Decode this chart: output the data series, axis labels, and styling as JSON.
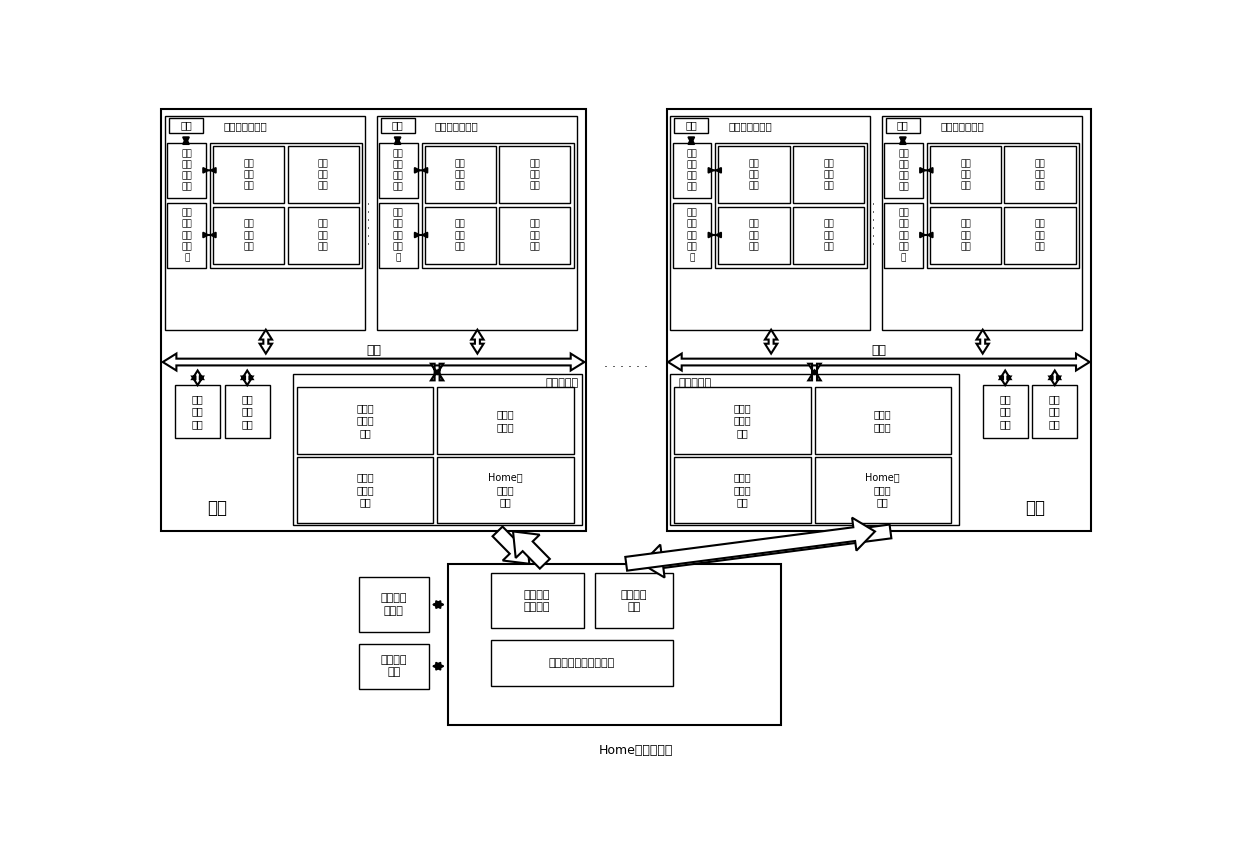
{
  "bg": "#ffffff",
  "lc": "#000000",
  "fs_small": 6.5,
  "fs_mid": 7.5,
  "fs_large": 9,
  "fs_title": 9,
  "nodes_label": [
    "节点",
    "节点"
  ],
  "home_label": "Home节点控制器",
  "bus_label": "总线",
  "cache_ctrl_label": "高速缓存控制器",
  "node_ctrl_label_L": "节点控制器",
  "node_ctrl_label_R": "节点控制器"
}
